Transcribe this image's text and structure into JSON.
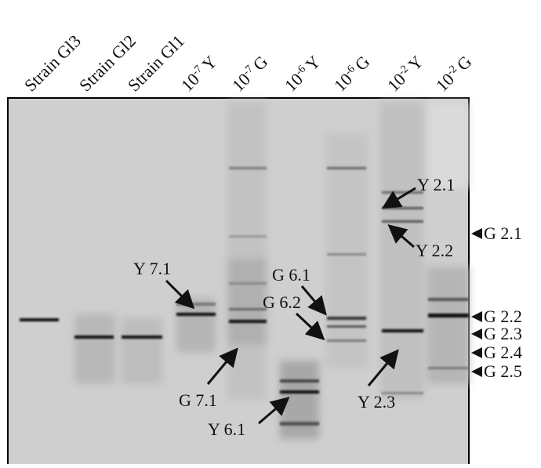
{
  "lanes": [
    {
      "label": "Strain Gl3"
    },
    {
      "label": "Strain Gl2"
    },
    {
      "label": "Strain Gl1"
    },
    {
      "base": "10",
      "exp": "-7",
      "suffix": "Y"
    },
    {
      "base": "10",
      "exp": "-7",
      "suffix": "G"
    },
    {
      "base": "10",
      "exp": "-6",
      "suffix": "Y"
    },
    {
      "base": "10",
      "exp": "-6",
      "suffix": "G"
    },
    {
      "base": "10",
      "exp": "-2",
      "suffix": "Y"
    },
    {
      "base": "10",
      "exp": "-2",
      "suffix": "G"
    }
  ],
  "band_labels": [
    "Y 7.1",
    "G 7.1",
    "Y 6.1",
    "G 6.1",
    "G 6.2",
    "Y 2.1",
    "Y 2.2",
    "Y 2.3"
  ],
  "side_labels": [
    "G 2.1",
    "G 2.2",
    "G 2.3",
    "G 2.4",
    "G 2.5"
  ]
}
